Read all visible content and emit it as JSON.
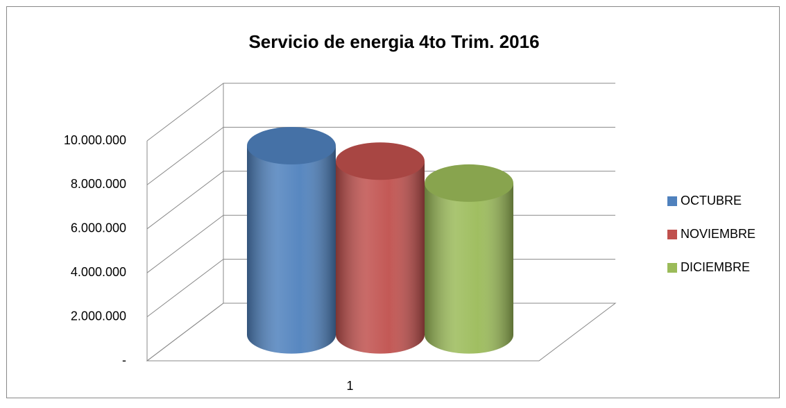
{
  "chart_data": {
    "type": "bar",
    "title": "Servicio de energia 4to Trim. 2016",
    "categories": [
      "1"
    ],
    "series": [
      {
        "name": "OCTUBRE",
        "color": "#4f81bd",
        "values": [
          8600000
        ]
      },
      {
        "name": "NOVIEMBRE",
        "color": "#c0504d",
        "values": [
          7900000
        ]
      },
      {
        "name": "DICIEMBRE",
        "color": "#9bbb59",
        "values": [
          6900000
        ]
      }
    ],
    "ylim": [
      0,
      10000000
    ],
    "yticks": [
      {
        "value": 0,
        "label": "-"
      },
      {
        "value": 2000000,
        "label": "2.000.000"
      },
      {
        "value": 4000000,
        "label": "4.000.000"
      },
      {
        "value": 6000000,
        "label": "6.000.000"
      },
      {
        "value": 8000000,
        "label": "8.000.000"
      },
      {
        "value": 10000000,
        "label": "10.000.000"
      }
    ],
    "grid": true,
    "legend": "right"
  }
}
